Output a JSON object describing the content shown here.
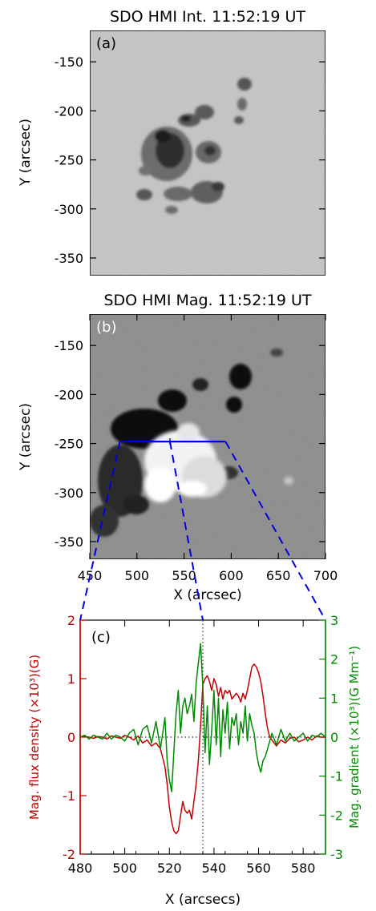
{
  "panel_a": {
    "title": "SDO HMI Int. 11:52:19 UT",
    "label": "(a)",
    "ylabel": "Y (arcsec)",
    "yticks": [
      "-150",
      "-200",
      "-250",
      "-300",
      "-350"
    ]
  },
  "panel_b": {
    "title": "SDO HMI Mag. 11:52:19 UT",
    "label": "(b)",
    "ylabel": "Y (arcsec)",
    "xlabel": "X (arcsec)",
    "yticks": [
      "-150",
      "-200",
      "-250",
      "-300",
      "-350"
    ],
    "xticks": [
      "450",
      "500",
      "550",
      "600",
      "650",
      "700"
    ],
    "slit": {
      "x_start": 482,
      "x_end": 594,
      "y": -248
    }
  },
  "colors": {
    "flux": "#c00000",
    "gradient": "#008a00",
    "slit": "#0000e0"
  },
  "chart_data": {
    "type": "line",
    "label": "(c)",
    "xlabel": "X (arcsecs)",
    "ylabel_left": "Mag. flux density (×10³)(G)",
    "ylabel_right": "Mag. gradient (×10³)(G Mm⁻¹)",
    "xlim": [
      480,
      590
    ],
    "ylim_left": [
      -2,
      2
    ],
    "ylim_right": [
      -3,
      3
    ],
    "xticks": [
      "480",
      "500",
      "520",
      "540",
      "560",
      "580"
    ],
    "yticks_left": [
      "2",
      "1",
      "0",
      "-1",
      "-2"
    ],
    "yticks_right": [
      "3",
      "2",
      "1",
      "0",
      "-1",
      "-2",
      "-3"
    ],
    "marker_x": 535,
    "x": [
      480,
      482,
      484,
      486,
      488,
      490,
      492,
      494,
      496,
      498,
      500,
      502,
      504,
      506,
      508,
      510,
      512,
      514,
      516,
      518,
      519,
      520,
      521,
      522,
      523,
      524,
      525,
      526,
      527,
      528,
      529,
      530,
      531,
      532,
      533,
      534,
      535,
      536,
      537,
      538,
      539,
      540,
      541,
      542,
      543,
      544,
      545,
      546,
      547,
      548,
      549,
      550,
      551,
      552,
      553,
      554,
      555,
      556,
      557,
      558,
      559,
      560,
      561,
      562,
      563,
      564,
      565,
      566,
      568,
      570,
      572,
      574,
      576,
      578,
      580,
      582,
      584,
      586,
      588,
      590
    ],
    "series": [
      {
        "axis": "left",
        "color": "flux",
        "values": [
          0.0,
          0.01,
          0.0,
          -0.02,
          0.01,
          0.0,
          -0.03,
          0.02,
          0.0,
          -0.02,
          0.03,
          0.0,
          -0.05,
          0.02,
          -0.1,
          -0.05,
          -0.15,
          -0.1,
          -0.2,
          -0.5,
          -0.8,
          -1.2,
          -1.45,
          -1.6,
          -1.65,
          -1.6,
          -1.35,
          -1.1,
          -1.25,
          -1.3,
          -1.25,
          -1.4,
          -1.1,
          -0.8,
          -0.4,
          0.2,
          0.9,
          1.0,
          1.05,
          0.95,
          0.8,
          1.0,
          0.9,
          0.7,
          0.85,
          0.65,
          0.8,
          0.75,
          0.8,
          0.65,
          0.7,
          0.75,
          0.7,
          0.6,
          0.75,
          0.65,
          0.8,
          1.0,
          1.2,
          1.25,
          1.2,
          1.1,
          0.95,
          0.7,
          0.4,
          0.15,
          0.0,
          -0.05,
          -0.15,
          -0.05,
          -0.1,
          -0.02,
          0.0,
          -0.08,
          -0.05,
          0.0,
          -0.05,
          0.02,
          0.0,
          0.0
        ]
      },
      {
        "axis": "right",
        "color": "gradient",
        "values": [
          0.0,
          0.05,
          -0.05,
          0.05,
          0.0,
          -0.05,
          0.1,
          -0.05,
          0.05,
          0.0,
          -0.1,
          0.1,
          0.2,
          -0.2,
          0.2,
          0.3,
          -0.15,
          0.4,
          -0.3,
          0.5,
          -0.6,
          -1.1,
          -1.4,
          -0.4,
          0.6,
          1.2,
          0.1,
          0.8,
          1.0,
          0.6,
          0.8,
          1.1,
          0.4,
          1.4,
          1.9,
          2.4,
          1.3,
          -0.4,
          0.8,
          -0.7,
          0.2,
          1.2,
          -0.2,
          1.0,
          -0.5,
          0.7,
          0.1,
          0.9,
          -0.3,
          0.5,
          0.3,
          0.6,
          -0.2,
          0.4,
          0.1,
          0.8,
          -0.1,
          0.6,
          0.3,
          0.1,
          -0.4,
          -0.7,
          -0.9,
          -0.6,
          -0.5,
          -0.3,
          -0.1,
          0.1,
          -0.2,
          0.2,
          -0.1,
          0.1,
          -0.1,
          0.0,
          0.1,
          -0.1,
          0.05,
          0.0,
          0.1,
          0.0
        ]
      }
    ]
  }
}
